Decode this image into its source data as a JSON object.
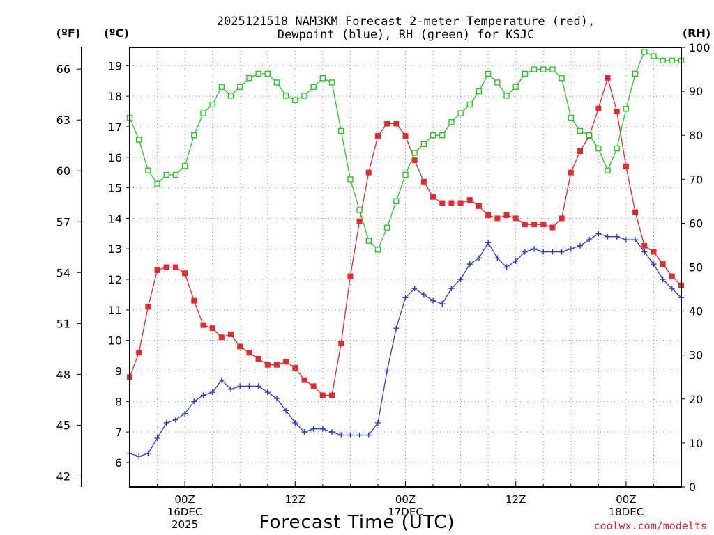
{
  "chart_data": {
    "type": "line",
    "title": "2025121518 NAM3KM Forecast 2-meter Temperature (red),",
    "subtitle": "Dewpoint (blue), RH (green) for KSJC",
    "xlabel": "Forecast Time (UTC)",
    "left_unit_f": "(ºF)",
    "left_unit_c": "(ºC)",
    "right_unit": "(RH)",
    "credit": "coolwx.com/modelts",
    "x_hours_start": 18,
    "x_hours_end": 78,
    "ylim_c": [
      5.2,
      19.6
    ],
    "ylim_rh": [
      0,
      100
    ],
    "ticks_c": [
      "6",
      "7",
      "8",
      "9",
      "10",
      "11",
      "12",
      "13",
      "14",
      "15",
      "16",
      "17",
      "18",
      "19"
    ],
    "ticks_c_values": [
      6,
      7,
      8,
      9,
      10,
      11,
      12,
      13,
      14,
      15,
      16,
      17,
      18,
      19
    ],
    "ticks_f": [
      "42",
      "45",
      "48",
      "51",
      "54",
      "57",
      "60",
      "63",
      "66"
    ],
    "ticks_f_values": [
      42,
      45,
      48,
      51,
      54,
      57,
      60,
      63,
      66
    ],
    "ticks_rh": [
      "0",
      "10",
      "20",
      "30",
      "40",
      "50",
      "60",
      "70",
      "80",
      "90",
      "100"
    ],
    "ticks_rh_values": [
      0,
      10,
      20,
      30,
      40,
      50,
      60,
      70,
      80,
      90,
      100
    ],
    "x_ticks": [
      {
        "hour": 24,
        "line1": "00Z",
        "line2": "16DEC",
        "line3": "2025"
      },
      {
        "hour": 36,
        "line1": "12Z",
        "line2": "",
        "line3": ""
      },
      {
        "hour": 48,
        "line1": "00Z",
        "line2": "17DEC",
        "line3": ""
      },
      {
        "hour": 60,
        "line1": "12Z",
        "line2": "",
        "line3": ""
      },
      {
        "hour": 72,
        "line1": "00Z",
        "line2": "18DEC",
        "line3": ""
      }
    ],
    "series": [
      {
        "name": "2-meter Temperature",
        "unit": "C",
        "color": "#e8282e",
        "marker": "filled-square",
        "x": [
          18,
          19,
          20,
          21,
          22,
          23,
          24,
          25,
          26,
          27,
          28,
          29,
          30,
          31,
          32,
          33,
          34,
          35,
          36,
          37,
          38,
          39,
          40,
          41,
          42,
          43,
          44,
          45,
          46,
          47,
          48,
          49,
          50,
          51,
          52,
          53,
          54,
          55,
          56,
          57,
          58,
          59,
          60,
          61,
          62,
          63,
          64,
          65,
          66,
          67,
          68,
          69,
          70,
          71,
          72,
          73,
          74,
          75,
          76,
          77,
          78
        ],
        "values": [
          8.8,
          9.6,
          11.1,
          12.3,
          12.4,
          12.4,
          12.2,
          11.3,
          10.5,
          10.4,
          10.1,
          10.2,
          9.8,
          9.6,
          9.4,
          9.2,
          9.2,
          9.3,
          9.1,
          8.7,
          8.5,
          8.2,
          8.2,
          9.9,
          12.1,
          13.9,
          15.5,
          16.7,
          17.1,
          17.1,
          16.7,
          15.9,
          15.2,
          14.7,
          14.5,
          14.5,
          14.5,
          14.6,
          14.4,
          14.1,
          14.0,
          14.1,
          14.0,
          13.8,
          13.8,
          13.8,
          13.7,
          14.0,
          15.5,
          16.2,
          16.7,
          17.6,
          18.6,
          17.5,
          15.7,
          14.2,
          13.1,
          12.9,
          12.5,
          12.1,
          11.8
        ]
      },
      {
        "name": "Dewpoint",
        "unit": "C",
        "color": "#2a3ee0",
        "marker": "plus",
        "x": [
          18,
          19,
          20,
          21,
          22,
          23,
          24,
          25,
          26,
          27,
          28,
          29,
          30,
          31,
          32,
          33,
          34,
          35,
          36,
          37,
          38,
          39,
          40,
          41,
          42,
          43,
          44,
          45,
          46,
          47,
          48,
          49,
          50,
          51,
          52,
          53,
          54,
          55,
          56,
          57,
          58,
          59,
          60,
          61,
          62,
          63,
          64,
          65,
          66,
          67,
          68,
          69,
          70,
          71,
          72,
          73,
          74,
          75,
          76,
          77,
          78
        ],
        "values": [
          6.3,
          6.2,
          6.3,
          6.8,
          7.3,
          7.4,
          7.6,
          8.0,
          8.2,
          8.3,
          8.7,
          8.4,
          8.5,
          8.5,
          8.5,
          8.3,
          8.1,
          7.7,
          7.3,
          7.0,
          7.1,
          7.1,
          7.0,
          6.9,
          6.9,
          6.9,
          6.9,
          7.3,
          9.0,
          10.4,
          11.4,
          11.7,
          11.5,
          11.3,
          11.2,
          11.7,
          12.0,
          12.5,
          12.7,
          13.2,
          12.7,
          12.4,
          12.6,
          12.9,
          13.0,
          12.9,
          12.9,
          12.9,
          13.0,
          13.1,
          13.3,
          13.5,
          13.4,
          13.4,
          13.3,
          13.3,
          12.9,
          12.5,
          12.0,
          11.7,
          11.4
        ]
      },
      {
        "name": "RH",
        "unit": "%",
        "color": "#22cc22",
        "marker": "open-square",
        "x": [
          18,
          19,
          20,
          21,
          22,
          23,
          24,
          25,
          26,
          27,
          28,
          29,
          30,
          31,
          32,
          33,
          34,
          35,
          36,
          37,
          38,
          39,
          40,
          41,
          42,
          43,
          44,
          45,
          46,
          47,
          48,
          49,
          50,
          51,
          52,
          53,
          54,
          55,
          56,
          57,
          58,
          59,
          60,
          61,
          62,
          63,
          64,
          65,
          66,
          67,
          68,
          69,
          70,
          71,
          72,
          73,
          74,
          75,
          76,
          77,
          78
        ],
        "values": [
          84,
          79,
          72,
          69,
          71,
          71,
          73,
          80,
          85,
          87,
          91,
          89,
          91,
          93,
          94,
          94,
          92,
          89,
          88,
          89,
          91,
          93,
          92,
          81,
          70,
          63,
          56,
          54,
          59,
          65,
          71,
          76,
          78,
          80,
          80,
          83,
          85,
          87,
          90,
          94,
          92,
          89,
          91,
          94,
          95,
          95,
          95,
          93,
          84,
          81,
          80,
          77,
          72,
          77,
          86,
          94,
          99,
          98,
          97,
          97,
          97
        ]
      }
    ]
  }
}
